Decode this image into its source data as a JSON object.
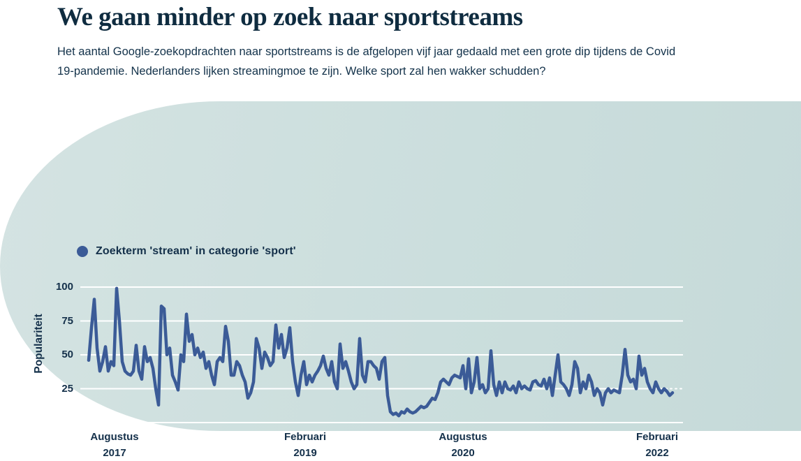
{
  "header": {
    "title": "We gaan minder op zoek naar sportstreams",
    "subtitle": "Het aantal Google-zoekopdrachten naar sportstreams is de afgelopen vijf jaar gedaald met een grote dip tijdens de Covid 19-pandemie. Nederlanders lijken streamingmoe te zijn. Welke sport zal hen wakker schudden?"
  },
  "chart_data": {
    "type": "line",
    "legend": "Zoekterm 'stream' in categorie 'sport'",
    "ylabel": "Populariteit",
    "ylim": [
      0,
      100
    ],
    "y_ticks": [
      "100",
      "75",
      "50",
      "25"
    ],
    "y_tick_values": [
      100,
      75,
      50,
      25
    ],
    "grid": "horizontal, white lines at 0/25/50/75/100, right tail of 25-line dotted",
    "legend_position": "top-left",
    "x_tick_labels": [
      {
        "month": "Augustus",
        "year": "2017"
      },
      {
        "month": "Februari",
        "year": "2019"
      },
      {
        "month": "Augustus",
        "year": "2020"
      },
      {
        "month": "Februari",
        "year": "2022"
      }
    ],
    "x_range_note": "weekly Google Trends style series, Aug 2017 - Feb 2022",
    "series": [
      {
        "name": "Zoekterm 'stream' in categorie 'sport'",
        "values": [
          46,
          70,
          91,
          55,
          38,
          45,
          56,
          38,
          45,
          42,
          99,
          75,
          45,
          38,
          36,
          35,
          38,
          57,
          38,
          32,
          56,
          45,
          48,
          40,
          25,
          13,
          86,
          84,
          50,
          55,
          35,
          30,
          24,
          50,
          45,
          80,
          60,
          65,
          50,
          55,
          48,
          52,
          40,
          45,
          35,
          28,
          45,
          48,
          45,
          71,
          60,
          35,
          35,
          45,
          42,
          35,
          30,
          18,
          22,
          30,
          62,
          55,
          40,
          52,
          48,
          42,
          45,
          72,
          55,
          65,
          48,
          55,
          70,
          45,
          30,
          20,
          35,
          45,
          28,
          35,
          30,
          35,
          38,
          42,
          49,
          40,
          35,
          45,
          30,
          25,
          58,
          40,
          45,
          38,
          30,
          25,
          28,
          62,
          35,
          30,
          45,
          45,
          42,
          40,
          32,
          45,
          48,
          20,
          8,
          6,
          7,
          5,
          8,
          7,
          10,
          8,
          7,
          8,
          10,
          12,
          11,
          12,
          15,
          18,
          17,
          22,
          30,
          32,
          30,
          28,
          33,
          35,
          34,
          33,
          42,
          25,
          47,
          22,
          30,
          48,
          25,
          28,
          22,
          25,
          53,
          28,
          20,
          30,
          22,
          30,
          25,
          24,
          27,
          22,
          30,
          25,
          27,
          25,
          24,
          30,
          31,
          28,
          27,
          32,
          25,
          33,
          20,
          35,
          50,
          30,
          28,
          25,
          20,
          28,
          45,
          40,
          22,
          30,
          25,
          35,
          30,
          20,
          25,
          22,
          13,
          22,
          25,
          22,
          24,
          23,
          22,
          35,
          54,
          35,
          30,
          32,
          25,
          49,
          35,
          40,
          30,
          25,
          22,
          30,
          25,
          22,
          25,
          23,
          20,
          22
        ]
      }
    ],
    "colors": {
      "line": "#3b5b97",
      "grid": "#ffffff",
      "panel": "#cbdedd",
      "text": "#14304a",
      "title": "#0f2c40"
    }
  }
}
